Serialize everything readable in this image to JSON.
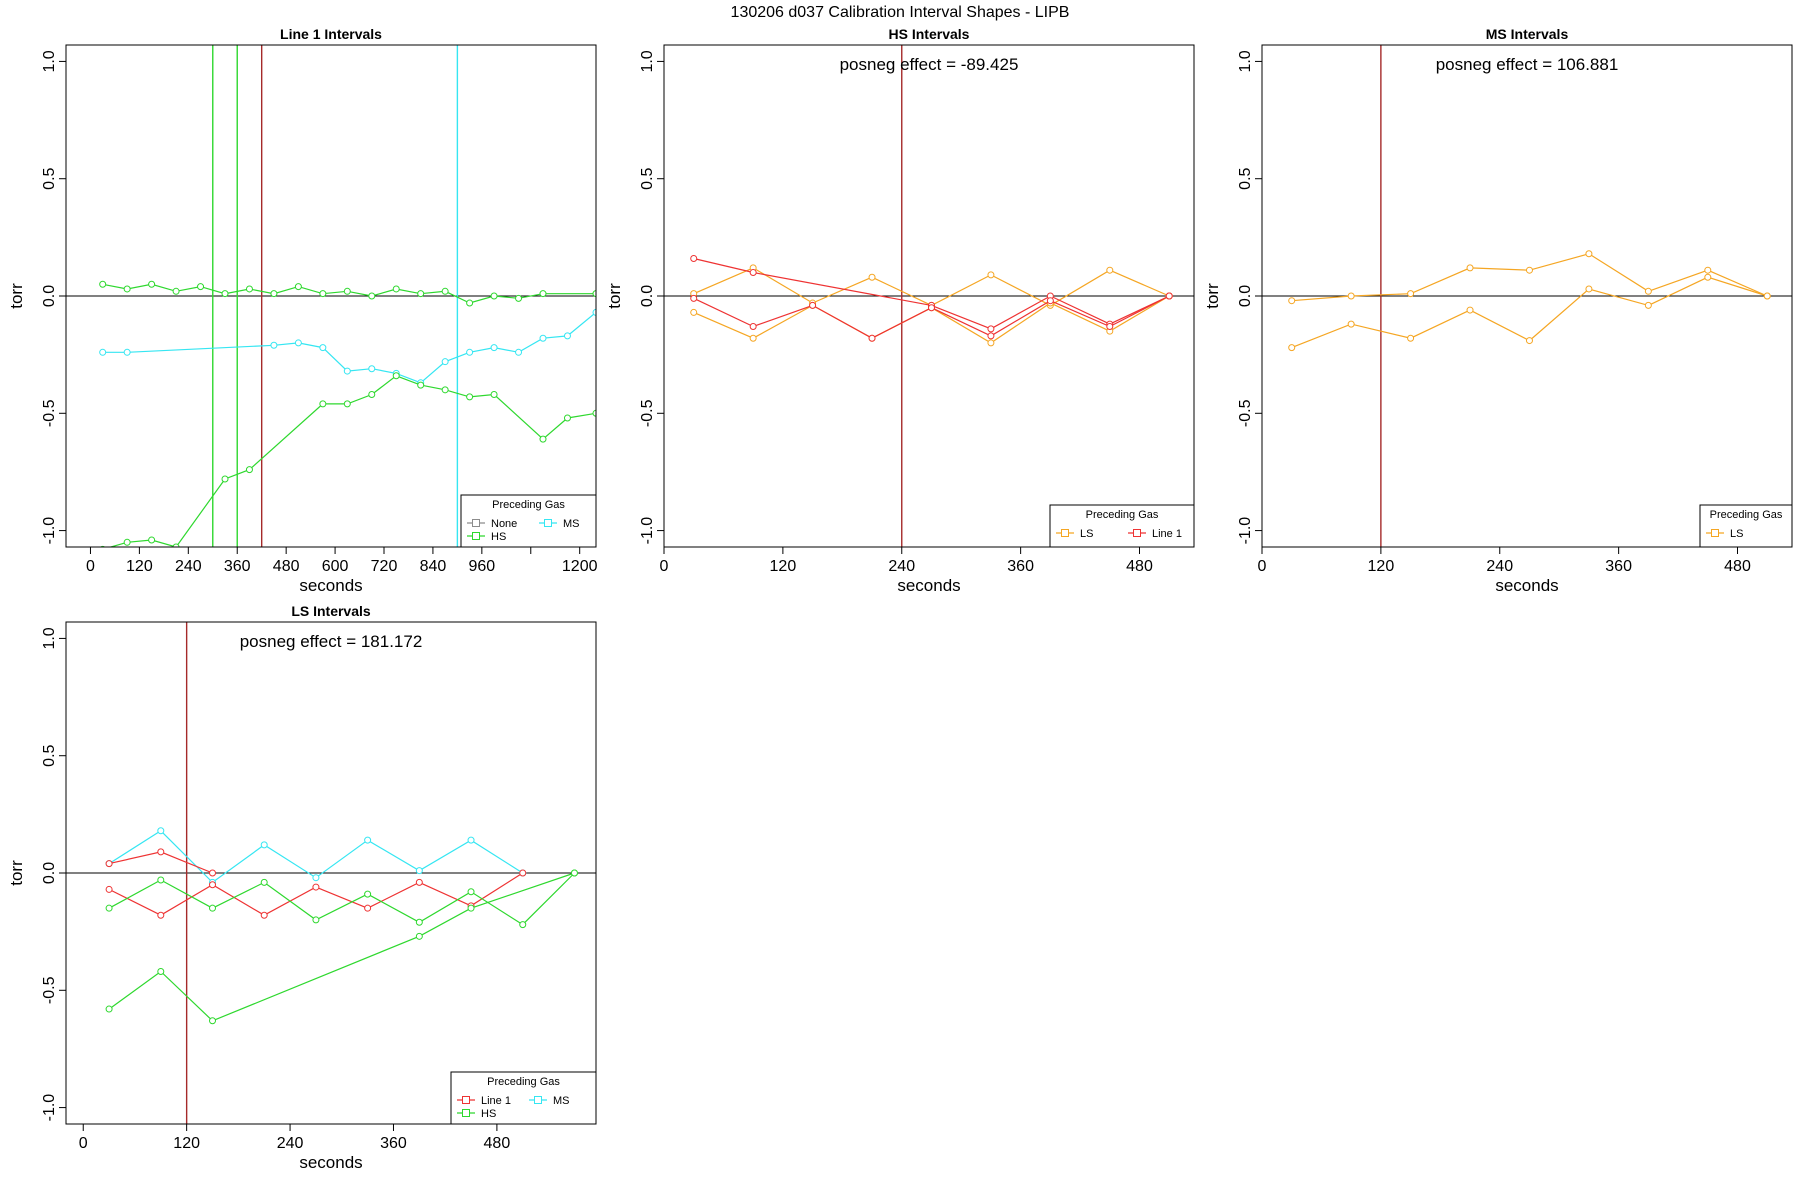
{
  "figure_title": "130206   d037   Calibration Interval Shapes - LIPB",
  "colors": {
    "None": "#8c8c8c",
    "HS": "#2ed82e",
    "MS": "#35e6f2",
    "LS": "#f5a623",
    "Line 1": "#ee3333",
    "vline_dark": "#a52a2a",
    "axis": "#000000"
  },
  "chart_data": [
    {
      "type": "line",
      "title": "Line 1 Intervals",
      "xlabel": "seconds",
      "ylabel": "torr",
      "xlim": [
        -60,
        1240
      ],
      "ylim": [
        -1.07,
        1.07
      ],
      "xticks": [
        0,
        120,
        240,
        360,
        480,
        600,
        720,
        840,
        960,
        1080,
        1200
      ],
      "xtick_labels": [
        "0",
        "120",
        "240",
        "360",
        "480",
        "600",
        "720",
        "840",
        "960",
        "",
        "1200"
      ],
      "yticks": [
        -1.0,
        -0.5,
        0.0,
        0.5,
        1.0
      ],
      "ytick_labels": [
        "-1.0",
        "-0.5",
        "0.0",
        "0.5",
        "1.0"
      ],
      "annotation": "",
      "hline": 0,
      "vlines": [
        {
          "x": 300,
          "series": "HS"
        },
        {
          "x": 360,
          "series": "HS"
        },
        {
          "x": 420,
          "series": "vline_dark"
        },
        {
          "x": 900,
          "series": "MS"
        }
      ],
      "series": [
        {
          "name": "HS",
          "points": [
            [
              30,
              0.05
            ],
            [
              90,
              0.03
            ],
            [
              150,
              0.05
            ],
            [
              210,
              0.02
            ],
            [
              270,
              0.04
            ],
            [
              330,
              0.01
            ],
            [
              390,
              0.03
            ],
            [
              450,
              0.01
            ],
            [
              510,
              0.04
            ],
            [
              570,
              0.01
            ],
            [
              630,
              0.02
            ],
            [
              690,
              0.0
            ],
            [
              750,
              0.03
            ],
            [
              810,
              0.01
            ],
            [
              870,
              0.02
            ],
            [
              930,
              -0.03
            ],
            [
              990,
              0.0
            ],
            [
              1050,
              -0.01
            ],
            [
              1110,
              0.01
            ],
            [
              1240,
              0.01
            ]
          ]
        },
        {
          "name": "MS",
          "points": [
            [
              30,
              -0.24
            ],
            [
              90,
              -0.24
            ],
            [
              450,
              -0.21
            ],
            [
              510,
              -0.2
            ],
            [
              570,
              -0.22
            ],
            [
              630,
              -0.32
            ],
            [
              690,
              -0.31
            ],
            [
              750,
              -0.33
            ],
            [
              810,
              -0.37
            ],
            [
              870,
              -0.28
            ],
            [
              930,
              -0.24
            ],
            [
              990,
              -0.22
            ],
            [
              1050,
              -0.24
            ],
            [
              1110,
              -0.18
            ],
            [
              1170,
              -0.17
            ],
            [
              1240,
              -0.07
            ]
          ]
        },
        {
          "name": "HS",
          "points": [
            [
              -60,
              -1.1
            ],
            [
              30,
              -1.08
            ],
            [
              90,
              -1.05
            ],
            [
              150,
              -1.04
            ],
            [
              210,
              -1.07
            ],
            [
              330,
              -0.78
            ],
            [
              390,
              -0.74
            ],
            [
              570,
              -0.46
            ],
            [
              630,
              -0.46
            ],
            [
              690,
              -0.42
            ],
            [
              750,
              -0.34
            ],
            [
              810,
              -0.38
            ],
            [
              870,
              -0.4
            ],
            [
              930,
              -0.43
            ],
            [
              990,
              -0.42
            ],
            [
              1110,
              -0.61
            ],
            [
              1170,
              -0.52
            ],
            [
              1240,
              -0.5
            ]
          ]
        }
      ],
      "legend": {
        "title": "Preceding Gas",
        "position": "bottom-right",
        "entries": [
          {
            "label": "None",
            "series": "None"
          },
          {
            "label": "MS",
            "series": "MS"
          },
          {
            "label": "HS",
            "series": "HS"
          }
        ]
      }
    },
    {
      "type": "line",
      "title": "HS Intervals",
      "xlabel": "seconds",
      "ylabel": "torr",
      "xlim": [
        0,
        535
      ],
      "ylim": [
        -1.07,
        1.07
      ],
      "xticks": [
        0,
        120,
        240,
        360,
        480
      ],
      "xtick_labels": [
        "0",
        "120",
        "240",
        "360",
        "480"
      ],
      "yticks": [
        -1.0,
        -0.5,
        0.0,
        0.5,
        1.0
      ],
      "ytick_labels": [
        "-1.0",
        "-0.5",
        "0.0",
        "0.5",
        "1.0"
      ],
      "annotation": "posneg effect = -89.425",
      "hline": 0,
      "vlines": [
        {
          "x": 240,
          "series": "vline_dark"
        }
      ],
      "series": [
        {
          "name": "LS",
          "points": [
            [
              30,
              0.01
            ],
            [
              90,
              0.12
            ],
            [
              150,
              -0.03
            ],
            [
              210,
              0.08
            ],
            [
              270,
              -0.04
            ],
            [
              330,
              0.09
            ],
            [
              390,
              -0.04
            ],
            [
              450,
              0.11
            ],
            [
              510,
              0.0
            ]
          ]
        },
        {
          "name": "LS",
          "points": [
            [
              30,
              -0.07
            ],
            [
              90,
              -0.18
            ],
            [
              150,
              -0.04
            ],
            [
              210,
              -0.18
            ],
            [
              270,
              -0.05
            ],
            [
              330,
              -0.2
            ],
            [
              390,
              -0.03
            ],
            [
              450,
              -0.15
            ],
            [
              510,
              0.0
            ]
          ]
        },
        {
          "name": "Line 1",
          "points": [
            [
              30,
              0.16
            ],
            [
              90,
              0.1
            ],
            [
              270,
              -0.04
            ],
            [
              330,
              -0.14
            ],
            [
              390,
              0.0
            ],
            [
              450,
              -0.12
            ],
            [
              510,
              0.0
            ]
          ]
        },
        {
          "name": "Line 1",
          "points": [
            [
              30,
              -0.01
            ],
            [
              90,
              -0.13
            ],
            [
              150,
              -0.04
            ],
            [
              210,
              -0.18
            ],
            [
              270,
              -0.05
            ],
            [
              330,
              -0.17
            ],
            [
              390,
              -0.02
            ],
            [
              450,
              -0.13
            ],
            [
              510,
              0.0
            ]
          ]
        }
      ],
      "legend": {
        "title": "Preceding Gas",
        "position": "bottom-right",
        "entries": [
          {
            "label": "LS",
            "series": "LS"
          },
          {
            "label": "Line 1",
            "series": "Line 1"
          }
        ]
      }
    },
    {
      "type": "line",
      "title": "MS Intervals",
      "xlabel": "seconds",
      "ylabel": "torr",
      "xlim": [
        0,
        535
      ],
      "ylim": [
        -1.07,
        1.07
      ],
      "xticks": [
        0,
        120,
        240,
        360,
        480
      ],
      "xtick_labels": [
        "0",
        "120",
        "240",
        "360",
        "480"
      ],
      "yticks": [
        -1.0,
        -0.5,
        0.0,
        0.5,
        1.0
      ],
      "ytick_labels": [
        "-1.0",
        "-0.5",
        "0.0",
        "0.5",
        "1.0"
      ],
      "annotation": "posneg effect = 106.881",
      "hline": 0,
      "vlines": [
        {
          "x": 120,
          "series": "vline_dark"
        }
      ],
      "series": [
        {
          "name": "LS",
          "points": [
            [
              30,
              -0.02
            ],
            [
              90,
              0.0
            ],
            [
              150,
              0.01
            ],
            [
              210,
              0.12
            ],
            [
              270,
              0.11
            ],
            [
              330,
              0.18
            ],
            [
              390,
              0.02
            ],
            [
              450,
              0.11
            ],
            [
              510,
              0.0
            ]
          ]
        },
        {
          "name": "LS",
          "points": [
            [
              30,
              -0.22
            ],
            [
              90,
              -0.12
            ],
            [
              150,
              -0.18
            ],
            [
              210,
              -0.06
            ],
            [
              270,
              -0.19
            ],
            [
              330,
              0.03
            ],
            [
              390,
              -0.04
            ],
            [
              450,
              0.08
            ],
            [
              510,
              0.0
            ]
          ]
        }
      ],
      "legend": {
        "title": "Preceding Gas",
        "position": "bottom-right",
        "entries": [
          {
            "label": "LS",
            "series": "LS"
          }
        ]
      }
    },
    {
      "type": "line",
      "title": "LS Intervals",
      "xlabel": "seconds",
      "ylabel": "torr",
      "xlim": [
        -20,
        595
      ],
      "ylim": [
        -1.07,
        1.07
      ],
      "xticks": [
        0,
        120,
        240,
        360,
        480
      ],
      "xtick_labels": [
        "0",
        "120",
        "240",
        "360",
        "480"
      ],
      "yticks": [
        -1.0,
        -0.5,
        0.0,
        0.5,
        1.0
      ],
      "ytick_labels": [
        "-1.0",
        "-0.5",
        "0.0",
        "0.5",
        "1.0"
      ],
      "annotation": "posneg effect = 181.172",
      "hline": 0,
      "vlines": [
        {
          "x": 120,
          "series": "vline_dark"
        }
      ],
      "series": [
        {
          "name": "MS",
          "points": [
            [
              30,
              0.04
            ],
            [
              90,
              0.18
            ],
            [
              150,
              -0.04
            ],
            [
              210,
              0.12
            ],
            [
              270,
              -0.02
            ],
            [
              330,
              0.14
            ],
            [
              390,
              0.01
            ],
            [
              450,
              0.14
            ],
            [
              510,
              0.0
            ]
          ]
        },
        {
          "name": "Line 1",
          "points": [
            [
              30,
              0.04
            ],
            [
              90,
              0.09
            ],
            [
              150,
              0.0
            ]
          ]
        },
        {
          "name": "Line 1",
          "points": [
            [
              30,
              -0.07
            ],
            [
              90,
              -0.18
            ],
            [
              150,
              -0.05
            ],
            [
              210,
              -0.18
            ],
            [
              270,
              -0.06
            ],
            [
              330,
              -0.15
            ],
            [
              390,
              -0.04
            ],
            [
              450,
              -0.14
            ],
            [
              510,
              0.0
            ]
          ]
        },
        {
          "name": "HS",
          "points": [
            [
              30,
              -0.15
            ],
            [
              90,
              -0.03
            ],
            [
              150,
              -0.15
            ],
            [
              210,
              -0.04
            ],
            [
              270,
              -0.2
            ],
            [
              330,
              -0.09
            ],
            [
              390,
              -0.21
            ],
            [
              450,
              -0.08
            ],
            [
              510,
              -0.22
            ],
            [
              570,
              0.0
            ]
          ]
        },
        {
          "name": "HS",
          "points": [
            [
              30,
              -0.58
            ],
            [
              90,
              -0.42
            ],
            [
              150,
              -0.63
            ],
            [
              390,
              -0.27
            ],
            [
              450,
              -0.15
            ],
            [
              570,
              0.0
            ]
          ]
        }
      ],
      "legend": {
        "title": "Preceding Gas",
        "position": "bottom-right",
        "entries": [
          {
            "label": "Line 1",
            "series": "Line 1"
          },
          {
            "label": "MS",
            "series": "MS"
          },
          {
            "label": "HS",
            "series": "HS"
          }
        ]
      }
    }
  ]
}
